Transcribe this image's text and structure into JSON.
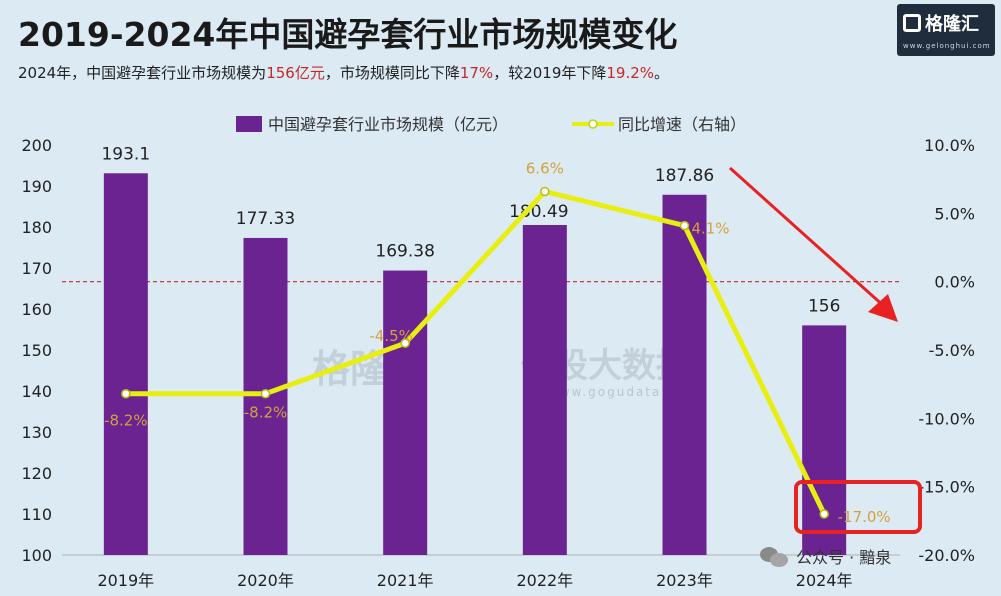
{
  "title": "2019-2024年中国避孕套行业市场规模变化",
  "subtitle": {
    "p1": "2024年，中国避孕套行业市场规模为",
    "v1": "156亿元",
    "p2": "，市场规模同比下降",
    "v2": "17%",
    "p3": "，较2019年下降",
    "v3": "19.2%",
    "p4": "。"
  },
  "logo": {
    "name": "格隆汇",
    "url": "www.gelonghui.com"
  },
  "watermark": {
    "brand": "格隆汇",
    "data": "勾股大数据",
    "url": "www.gogudata.com"
  },
  "footer": {
    "text": "公众号 · 黯泉"
  },
  "colors": {
    "bar": "#6a2390",
    "line": "#e8ee10",
    "pct_label": "#d4a23a",
    "highlight": "#e82222"
  },
  "chart_data": {
    "type": "bar",
    "categories": [
      "2019年",
      "2020年",
      "2021年",
      "2022年",
      "2023年",
      "2024年"
    ],
    "series": [
      {
        "name": "中国避孕套行业市场规模（亿元）",
        "type": "bar",
        "axis": "left",
        "values": [
          193.1,
          177.33,
          169.38,
          180.49,
          187.86,
          156
        ],
        "labels": [
          "193.1",
          "177.33",
          "169.38",
          "180.49",
          "187.86",
          "156"
        ]
      },
      {
        "name": "同比增速（右轴）",
        "type": "line",
        "axis": "right",
        "values": [
          -8.2,
          -8.2,
          -4.5,
          6.6,
          4.1,
          -17.0
        ],
        "labels": [
          "-8.2%",
          "-8.2%",
          "-4.5%",
          "6.6%",
          "4.1%",
          "-17.0%"
        ]
      }
    ],
    "y_left": {
      "min": 100,
      "max": 200,
      "ticks": [
        "200",
        "190",
        "180",
        "170",
        "160",
        "150",
        "140",
        "130",
        "120",
        "110",
        "100"
      ]
    },
    "y_right": {
      "min": -20,
      "max": 10,
      "ticks": [
        "10.0%",
        "5.0%",
        "0.0%",
        "-5.0%",
        "-10.0%",
        "-15.0%",
        "-20.0%"
      ]
    },
    "zero_line": "dashed red",
    "legend_position": "top-center",
    "grid": false
  }
}
